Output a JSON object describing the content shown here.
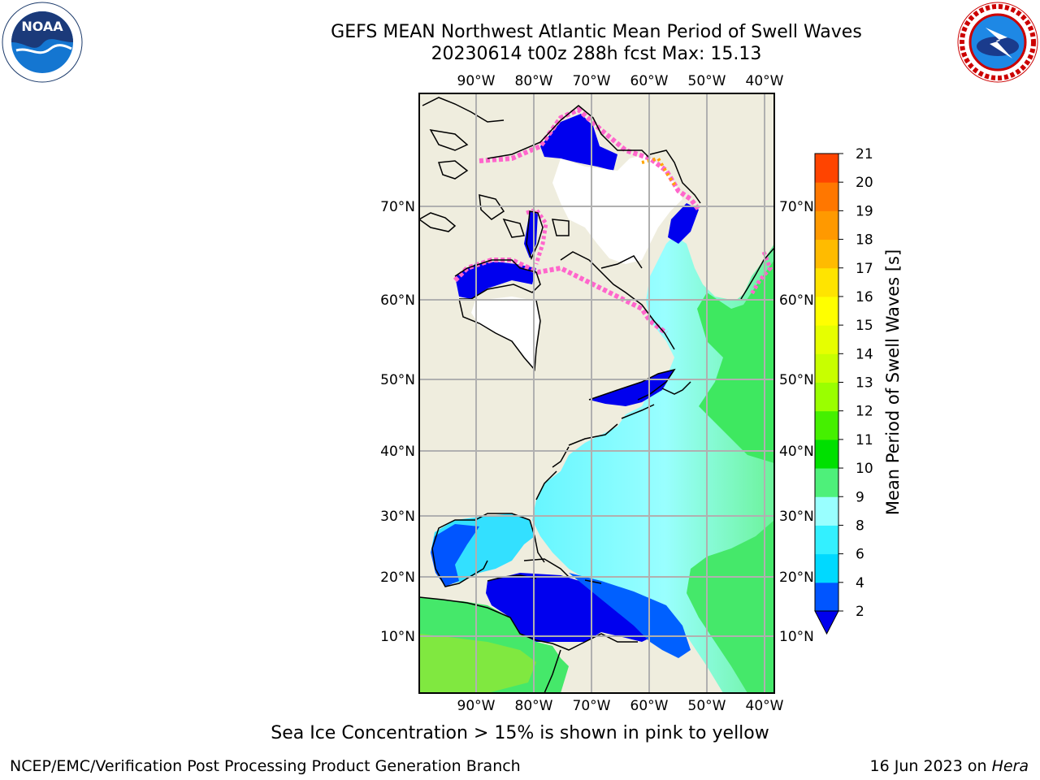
{
  "header": {
    "title_line1": "GEFS MEAN Northwest Atlantic Mean Period of Swell Waves",
    "title_line2": "20230614 t00z 288h fcst   Max: 15.13"
  },
  "logos": {
    "left": {
      "icon": "noaa-logo",
      "text": "NOAA",
      "ring_text": "NATIONAL OCEANIC AND ATMOSPHERIC ADMINISTRATION · U.S. DEPARTMENT OF COMMERCE"
    },
    "right": {
      "icon": "nws-logo",
      "ring_text": "NATIONAL WEATHER SERVICE"
    }
  },
  "map": {
    "lon_labels": [
      "90°W",
      "80°W",
      "70°W",
      "60°W",
      "50°W",
      "40°W"
    ],
    "lat_labels": [
      "70°N",
      "60°N",
      "50°N",
      "40°N",
      "30°N",
      "20°N",
      "10°N"
    ],
    "colors": {
      "land": "#efedde",
      "ice_white": "#ffffff",
      "coast": "#000000",
      "grid": "#b0b0b0"
    }
  },
  "colorbar": {
    "label": "Mean Period of Swell Waves [s]",
    "ticks": [
      "2",
      "4",
      "6",
      "8",
      "9",
      "10",
      "11",
      "12",
      "13",
      "14",
      "15",
      "16",
      "17",
      "18",
      "19",
      "20",
      "21"
    ],
    "colors": [
      "#0055ff",
      "#00d9ff",
      "#33f0ff",
      "#99ffff",
      "#4ef07a",
      "#00e000",
      "#45f000",
      "#9aff00",
      "#c8ff00",
      "#e6ff00",
      "#ffff00",
      "#ffe400",
      "#ffbb00",
      "#ff9900",
      "#ff7700",
      "#ff4400",
      "#ff0000"
    ],
    "extend_color": "#0000ee"
  },
  "footer": {
    "note": "Sea Ice Concentration > 15% is shown in pink to yellow",
    "credit_left": "NCEP/EMC/Verification Post Processing Product Generation Branch",
    "credit_right_date": "16 Jun 2023 on ",
    "credit_right_host": "Hera"
  }
}
